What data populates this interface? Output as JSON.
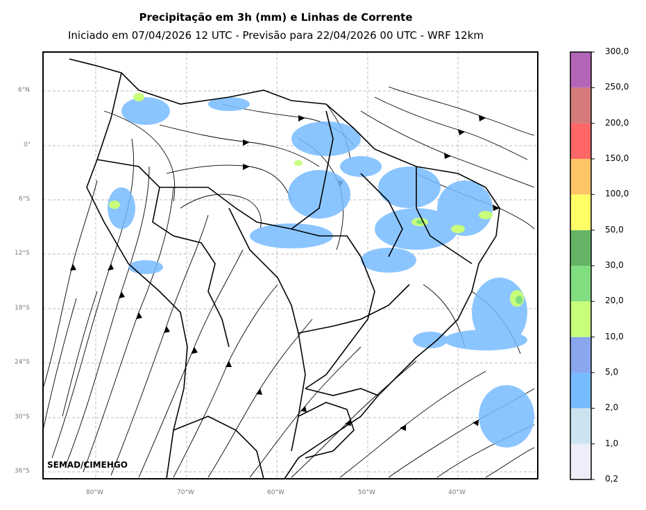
{
  "title": "Precipitação em 3h (mm) e Linhas de Corrente",
  "subtitle": "Iniciado em 07/04/2026 12 UTC - Previsão para 22/04/2026 00 UTC - WRF 12km",
  "credit": "SEMAD/CIMEHGO",
  "lat_ticks": [
    "6°N",
    "0°",
    "6°S",
    "12°S",
    "18°S",
    "24°S",
    "30°S",
    "36°S"
  ],
  "lon_ticks": [
    "80°W",
    "70°W",
    "60°W",
    "50°W",
    "40°W"
  ],
  "colorbar": {
    "labels": [
      "0,2",
      "1,0",
      "2,0",
      "5,0",
      "10,0",
      "20,0",
      "30,0",
      "50,0",
      "100,0",
      "150,0",
      "200,0",
      "250,0",
      "300,0"
    ],
    "colors": [
      "#eeeefa",
      "#cce4ef",
      "#77bbff",
      "#8aa6ee",
      "#c8ff7a",
      "#80dd80",
      "#66b366",
      "#ffff66",
      "#ffc466",
      "#ff6666",
      "#d47a7a",
      "#b366b8"
    ]
  }
}
